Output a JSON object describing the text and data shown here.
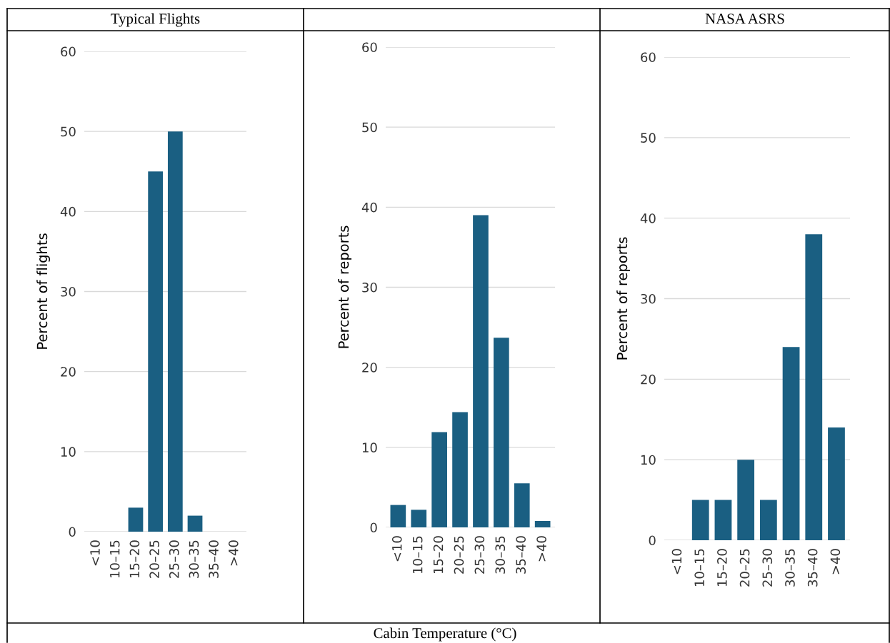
{
  "chart_data": [
    {
      "type": "bar",
      "title": "Typical Flights",
      "ylabel": "Percent of flights",
      "categories": [
        "<10",
        "10–15",
        "15–20",
        "20–25",
        "25–30",
        "30–35",
        "35–40",
        ">40"
      ],
      "values": [
        0,
        0,
        3,
        45,
        50,
        2,
        0,
        0
      ],
      "color": "#1a5f82",
      "ylim": [
        0,
        60
      ],
      "yticks": [
        0,
        10,
        20,
        30,
        40,
        50,
        60
      ],
      "grid": "y",
      "annotations": [
        "Cabin Temperature (°C)"
      ]
    },
    {
      "type": "bar",
      "ylabel": "Percent of reports",
      "categories": [
        "<10",
        "10–15",
        "15–20",
        "20–25",
        "25–30",
        "30–35",
        "35–40",
        ">40"
      ],
      "values": [
        2.8,
        2.2,
        11.9,
        14.4,
        39.0,
        23.7,
        5.5,
        0.8
      ],
      "color": "#1a5f82",
      "ylim": [
        0,
        60
      ],
      "yticks": [
        0,
        10,
        20,
        30,
        40,
        50,
        60
      ],
      "grid": "y"
    },
    {
      "type": "bar",
      "title": "NASA ASRS",
      "ylabel": "Percent of reports",
      "categories": [
        "<10",
        "10–15",
        "15–20",
        "20–25",
        "25–30",
        "30–35",
        "35–40",
        ">40"
      ],
      "values": [
        0,
        5,
        5,
        10,
        5,
        24,
        38,
        14
      ],
      "color": "#1a5f82",
      "ylim": [
        0,
        60
      ],
      "yticks": [
        0,
        10,
        20,
        30,
        40,
        50,
        60
      ],
      "grid": "y"
    }
  ]
}
